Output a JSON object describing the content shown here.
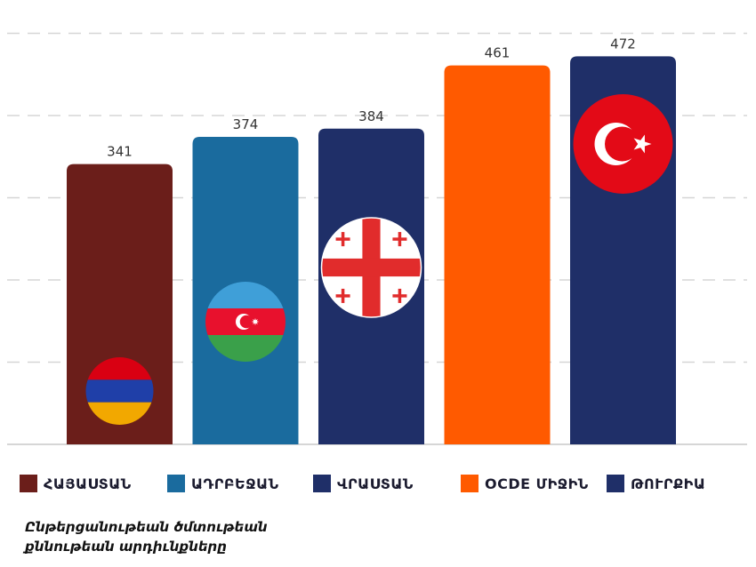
{
  "chart_data": {
    "type": "bar",
    "categories": [
      "ՀԱՅԱՍՏԱՆ",
      "ԱԴՐԲԵՋԱՆ",
      "ՎՐԱՍՏԱՆ",
      "OCDE ՄԻՋԻՆ",
      "ԹՈՒՐՔԻԱ"
    ],
    "values": [
      341,
      374,
      384,
      461,
      472
    ],
    "value_labels": [
      "341",
      "374",
      "384",
      "461",
      "472"
    ],
    "colors": [
      "#6b1e1a",
      "#1a6b9e",
      "#1f2f68",
      "#ff5a00",
      "#1f2f68"
    ],
    "flags": [
      "flag-armenia",
      "flag-azerbaijan",
      "flag-georgia",
      "",
      "flag-turkey"
    ],
    "ylim": [
      0,
      500
    ],
    "grid": true,
    "legend_position": "bottom",
    "title": "",
    "xlabel": "",
    "ylabel": ""
  },
  "legend": [
    {
      "label": "ՀԱՅԱՍՏԱՆ",
      "color": "#6b1e1a"
    },
    {
      "label": "ԱԴՐԲԵՋԱՆ",
      "color": "#1a6b9e"
    },
    {
      "label": "ՎՐԱՍՏԱՆ",
      "color": "#1f2f68"
    },
    {
      "label": "OCDE ՄԻՋԻՆ",
      "color": "#ff5a00"
    },
    {
      "label": "ԹՈՒՐՔԻԱ",
      "color": "#1f2f68"
    }
  ],
  "caption": {
    "line1": "Ընթերցանութեան ծմտութեան",
    "line2": "քննութեան արդիւնքները"
  }
}
